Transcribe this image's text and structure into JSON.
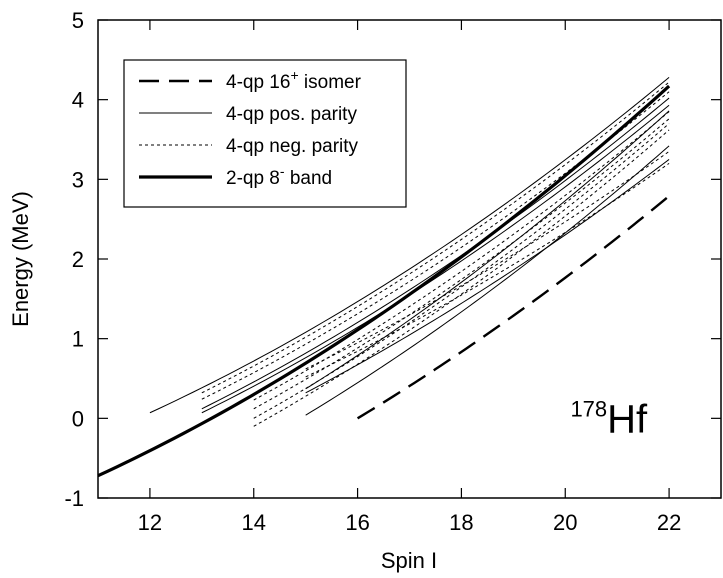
{
  "chart_data": {
    "type": "line",
    "title": "",
    "xlabel": "Spin I",
    "ylabel": "Energy (MeV)",
    "xlim": [
      11,
      23
    ],
    "ylim": [
      -1,
      5
    ],
    "xticks": [
      12,
      14,
      16,
      18,
      20,
      22
    ],
    "yticks": [
      -1,
      0,
      1,
      2,
      3,
      4,
      5
    ],
    "grid": false,
    "legend_position": "top-left",
    "legend": [
      {
        "label": "4-qp 16",
        "sup": "+",
        "suffix": " isomer",
        "style": "long-dash"
      },
      {
        "label": "4-qp pos. parity",
        "sup": "",
        "suffix": "",
        "style": "thin-solid"
      },
      {
        "label": "4-qp neg. parity",
        "sup": "",
        "suffix": "",
        "style": "thin-dotted"
      },
      {
        "label": "2-qp 8",
        "sup": "-",
        "suffix": " band",
        "style": "thick-solid"
      }
    ],
    "annotation": {
      "sup": "178",
      "text": "Hf",
      "x": 20.1,
      "y": 0.0
    },
    "series": [
      {
        "name": "4-qp 16+ isomer",
        "style": "long-dash",
        "x": [
          16,
          22
        ],
        "y": [
          0.0,
          2.79
        ]
      },
      {
        "name": "2-qp 8- band",
        "style": "thick-solid",
        "x": [
          11,
          22
        ],
        "y": [
          -0.72,
          4.17
        ]
      },
      {
        "name": "4-qp pos. parity",
        "style": "thin-solid",
        "x": [
          12,
          22
        ],
        "y": [
          0.07,
          4.28
        ]
      },
      {
        "name": "4-qp pos. parity",
        "style": "thin-solid",
        "x": [
          13,
          22
        ],
        "y": [
          0.12,
          4.02
        ]
      },
      {
        "name": "4-qp pos. parity",
        "style": "thin-solid",
        "x": [
          13,
          22
        ],
        "y": [
          0.07,
          3.93
        ]
      },
      {
        "name": "4-qp pos. parity",
        "style": "thin-solid",
        "x": [
          15,
          22
        ],
        "y": [
          0.37,
          3.86
        ]
      },
      {
        "name": "4-qp pos. parity",
        "style": "thin-solid",
        "x": [
          15,
          22
        ],
        "y": [
          0.04,
          3.42
        ]
      },
      {
        "name": "4-qp pos. parity",
        "style": "thin-solid",
        "x": [
          15,
          22
        ],
        "y": [
          0.32,
          3.25
        ]
      },
      {
        "name": "4-qp neg. parity",
        "style": "thin-dotted",
        "x": [
          13,
          22
        ],
        "y": [
          0.32,
          4.22
        ]
      },
      {
        "name": "4-qp neg. parity",
        "style": "thin-dotted",
        "x": [
          13,
          22
        ],
        "y": [
          0.24,
          4.1
        ]
      },
      {
        "name": "4-qp neg. parity",
        "style": "thin-dotted",
        "x": [
          14,
          22
        ],
        "y": [
          0.23,
          3.85
        ]
      },
      {
        "name": "4-qp neg. parity",
        "style": "thin-dotted",
        "x": [
          14,
          22
        ],
        "y": [
          0.12,
          3.76
        ]
      },
      {
        "name": "4-qp neg. parity",
        "style": "thin-dotted",
        "x": [
          14,
          22
        ],
        "y": [
          0.0,
          3.7
        ]
      },
      {
        "name": "4-qp neg. parity",
        "style": "thin-dotted",
        "x": [
          14,
          22
        ],
        "y": [
          -0.1,
          3.62
        ]
      },
      {
        "name": "4-qp neg. parity",
        "style": "thin-dotted",
        "x": [
          15,
          22
        ],
        "y": [
          0.62,
          3.35
        ]
      },
      {
        "name": "4-qp neg. parity",
        "style": "thin-dotted",
        "x": [
          15,
          22
        ],
        "y": [
          0.52,
          3.2
        ]
      }
    ]
  }
}
